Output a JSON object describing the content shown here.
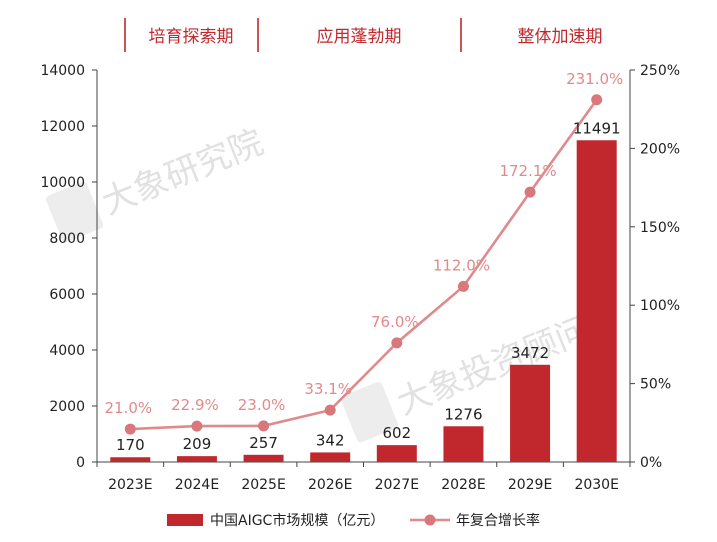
{
  "chart_data": {
    "type": "bar",
    "categories": [
      "2023E",
      "2024E",
      "2025E",
      "2026E",
      "2027E",
      "2028E",
      "2029E",
      "2030E"
    ],
    "series": [
      {
        "name": "中国AIGC市场规模（亿元）",
        "type": "bar",
        "axis": "left",
        "values": [
          170,
          209,
          257,
          342,
          602,
          1276,
          3472,
          11491
        ],
        "labels": [
          "170",
          "209",
          "257",
          "342",
          "602",
          "1276",
          "3472",
          "11491"
        ]
      },
      {
        "name": "年复合增长率",
        "type": "line",
        "axis": "right",
        "values": [
          21.0,
          22.9,
          23.0,
          33.1,
          76.0,
          112.0,
          172.1,
          231.0
        ],
        "labels": [
          "21.0%",
          "22.9%",
          "23.0%",
          "33.1%",
          "76.0%",
          "112.0%",
          "172.1%",
          "231.0%"
        ]
      }
    ],
    "y_left": {
      "range": [
        0,
        14000
      ],
      "ticks": [
        "0",
        "2000",
        "4000",
        "6000",
        "8000",
        "10000",
        "12000",
        "14000"
      ]
    },
    "y_right": {
      "range": [
        0,
        250
      ],
      "ticks": [
        "0%",
        "50%",
        "100%",
        "150%",
        "200%",
        "250%"
      ]
    },
    "phases": [
      {
        "label": "培育探索期",
        "from": 0,
        "to": 2
      },
      {
        "label": "应用蓬勃期",
        "from": 3,
        "to": 5
      },
      {
        "label": "整体加速期",
        "from": 6,
        "to": 7
      }
    ],
    "watermarks": [
      "大象研究院",
      "大象投资顾问"
    ],
    "legend_position": "bottom",
    "grid": false,
    "colors": {
      "bar": "#c0282d",
      "line": "#e08a8c",
      "line_marker": "#d9787b",
      "phase_text": "#c0282d"
    }
  }
}
